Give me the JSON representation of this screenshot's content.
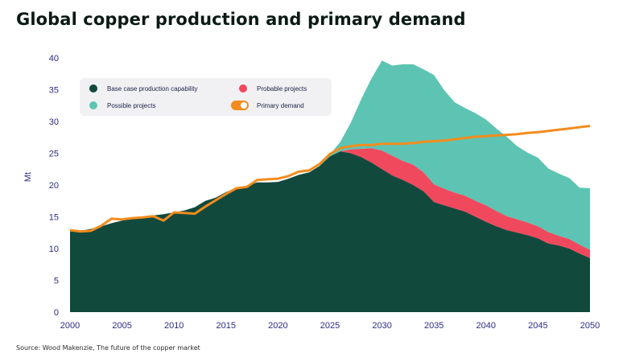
{
  "title": "Global copper production and primary demand",
  "source": "Source: Wood Makenzie, The future of the copper market",
  "colors": {
    "base": "#12493d",
    "probable": "#f0495d",
    "possible": "#5dc4b3",
    "demand": "#f28c1e",
    "axis": "#2b2b86"
  },
  "chart_data": {
    "type": "area",
    "ylabel": "Mt",
    "xlim": [
      2000,
      2050
    ],
    "ylim": [
      0,
      40
    ],
    "xticks": [
      "2000",
      "2005",
      "2010",
      "2015",
      "2020",
      "2025",
      "2030",
      "2035",
      "2040",
      "2045",
      "2050"
    ],
    "yticks": [
      "0",
      "5",
      "10",
      "15",
      "20",
      "25",
      "30",
      "35",
      "40"
    ],
    "legend_position": "top-left",
    "legend": [
      {
        "key": "base",
        "label": "Base case production capability"
      },
      {
        "key": "probable",
        "label": "Probable projects"
      },
      {
        "key": "possible",
        "label": "Possible projects"
      },
      {
        "key": "demand",
        "label": "Primary demand"
      }
    ],
    "x": [
      2000,
      2001,
      2002,
      2003,
      2004,
      2005,
      2006,
      2007,
      2008,
      2009,
      2010,
      2011,
      2012,
      2013,
      2014,
      2015,
      2016,
      2017,
      2018,
      2019,
      2020,
      2021,
      2022,
      2023,
      2024,
      2025,
      2026,
      2027,
      2028,
      2029,
      2030,
      2031,
      2032,
      2033,
      2034,
      2035,
      2036,
      2037,
      2038,
      2039,
      2040,
      2041,
      2042,
      2043,
      2044,
      2045,
      2046,
      2047,
      2048,
      2049,
      2050
    ],
    "series": [
      {
        "key": "base",
        "name": "Base case production capability",
        "values": [
          13.0,
          12.8,
          13.1,
          13.5,
          14.0,
          14.4,
          14.7,
          15.0,
          15.2,
          15.4,
          15.7,
          16.0,
          16.5,
          17.5,
          18.0,
          18.9,
          19.5,
          19.9,
          20.4,
          20.4,
          20.5,
          21.0,
          21.6,
          22.0,
          23.0,
          24.5,
          25.3,
          25.0,
          24.4,
          23.5,
          22.5,
          21.5,
          20.8,
          20.0,
          19.0,
          17.3,
          16.8,
          16.3,
          15.8,
          15.0,
          14.2,
          13.5,
          12.9,
          12.5,
          12.1,
          11.6,
          10.8,
          10.5,
          10.0,
          9.2,
          8.5
        ]
      },
      {
        "key": "probable",
        "name": "Probable projects",
        "values": [
          0,
          0,
          0,
          0,
          0,
          0,
          0,
          0,
          0,
          0,
          0,
          0,
          0,
          0,
          0,
          0,
          0,
          0,
          0,
          0,
          0,
          0,
          0,
          0,
          0,
          0,
          0,
          0.6,
          1.3,
          2.3,
          2.9,
          3.1,
          3.0,
          3.2,
          3.0,
          2.8,
          2.6,
          2.5,
          2.5,
          2.5,
          2.6,
          2.4,
          2.2,
          2.1,
          2.0,
          1.9,
          1.8,
          1.5,
          1.5,
          1.4,
          1.3
        ]
      },
      {
        "key": "possible",
        "name": "Possible projects",
        "values": [
          0,
          0,
          0,
          0,
          0,
          0,
          0,
          0,
          0,
          0,
          0,
          0,
          0,
          0,
          0,
          0,
          0,
          0,
          0,
          0,
          0,
          0,
          0,
          0,
          0,
          0.3,
          1.5,
          4.2,
          7.8,
          11.0,
          14.2,
          14.2,
          15.2,
          15.8,
          16.2,
          17.2,
          15.5,
          14.2,
          13.8,
          13.8,
          13.5,
          13.0,
          12.5,
          11.5,
          11.0,
          10.8,
          10.0,
          9.8,
          9.6,
          9.0,
          9.7
        ]
      },
      {
        "key": "demand",
        "name": "Primary demand",
        "values": [
          12.9,
          12.7,
          12.8,
          13.6,
          14.7,
          14.6,
          14.8,
          14.9,
          15.1,
          14.4,
          15.7,
          15.6,
          15.5,
          16.6,
          17.6,
          18.6,
          19.5,
          19.7,
          20.8,
          20.9,
          21.0,
          21.4,
          22.1,
          22.3,
          23.3,
          24.9,
          25.8,
          26.1,
          26.3,
          26.3,
          26.5,
          26.5,
          26.5,
          26.6,
          26.8,
          26.9,
          27.0,
          27.2,
          27.4,
          27.6,
          27.7,
          27.8,
          27.9,
          28.0,
          28.2,
          28.3,
          28.5,
          28.7,
          28.9,
          29.1,
          29.3
        ]
      }
    ]
  }
}
